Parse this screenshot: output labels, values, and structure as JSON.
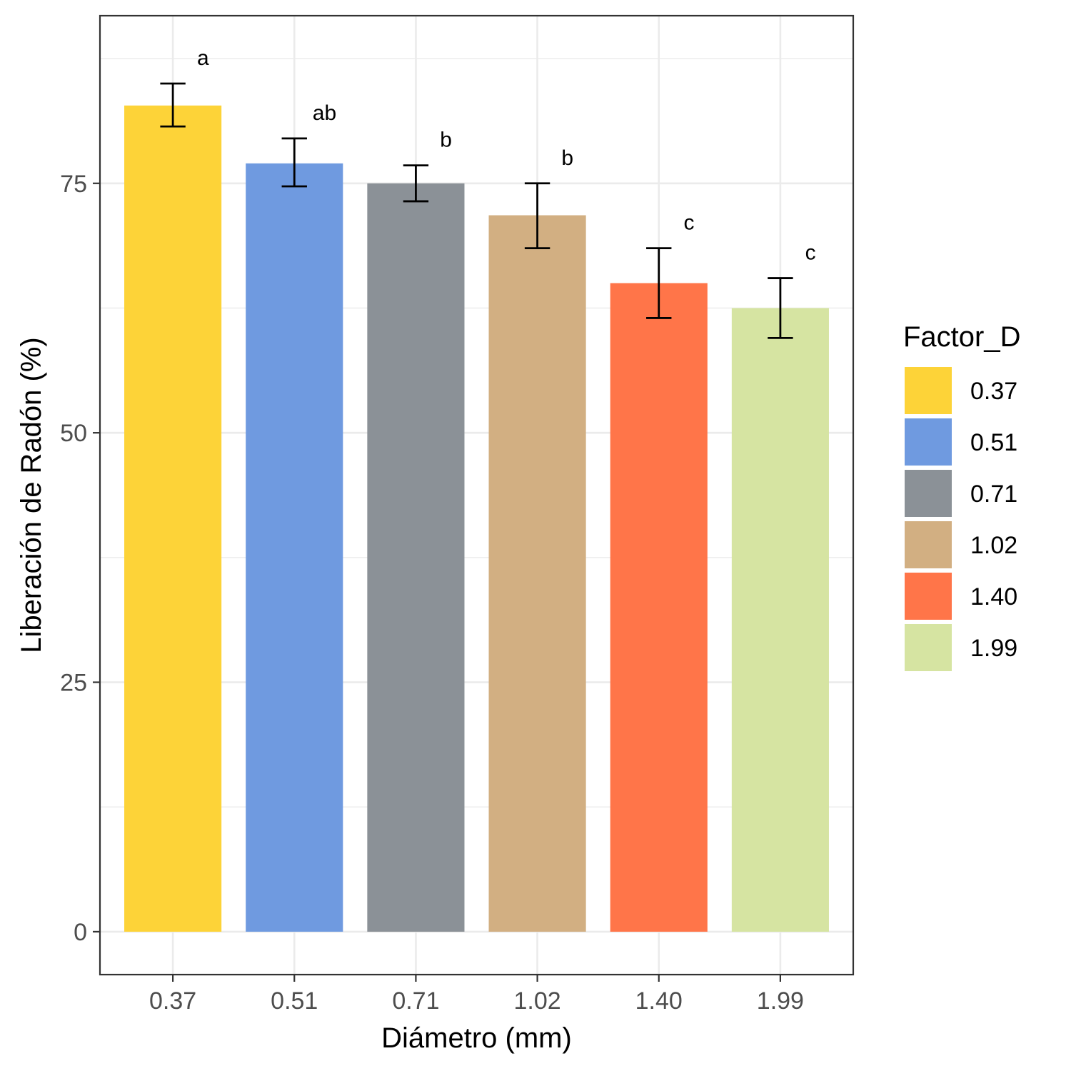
{
  "chart_data": {
    "type": "bar",
    "categories": [
      "0.37",
      "0.51",
      "0.71",
      "1.02",
      "1.40",
      "1.99"
    ],
    "values": [
      82.8,
      77.0,
      75.0,
      71.8,
      65.0,
      62.5
    ],
    "error_low": [
      80.7,
      74.7,
      73.2,
      68.5,
      61.5,
      59.5
    ],
    "error_high": [
      85.0,
      79.5,
      76.8,
      75.0,
      68.5,
      65.5
    ],
    "significance_letters": [
      "a",
      "ab",
      "b",
      "b",
      "c",
      "c"
    ],
    "colors": [
      "#FDD338",
      "#6F9AE0",
      "#8B9197",
      "#D2AF82",
      "#FF7549",
      "#D6E4A2"
    ],
    "title": "",
    "xlabel": "Diámetro (mm)",
    "ylabel": "Liberación de Radón (%)",
    "ylim": [
      -4.3,
      91.8
    ],
    "yticks": [
      0,
      25,
      50,
      75
    ],
    "grid": true,
    "legend": {
      "title": "Factor_D",
      "position": "right",
      "entries": [
        "0.37",
        "0.51",
        "0.71",
        "1.02",
        "1.40",
        "1.99"
      ]
    }
  }
}
